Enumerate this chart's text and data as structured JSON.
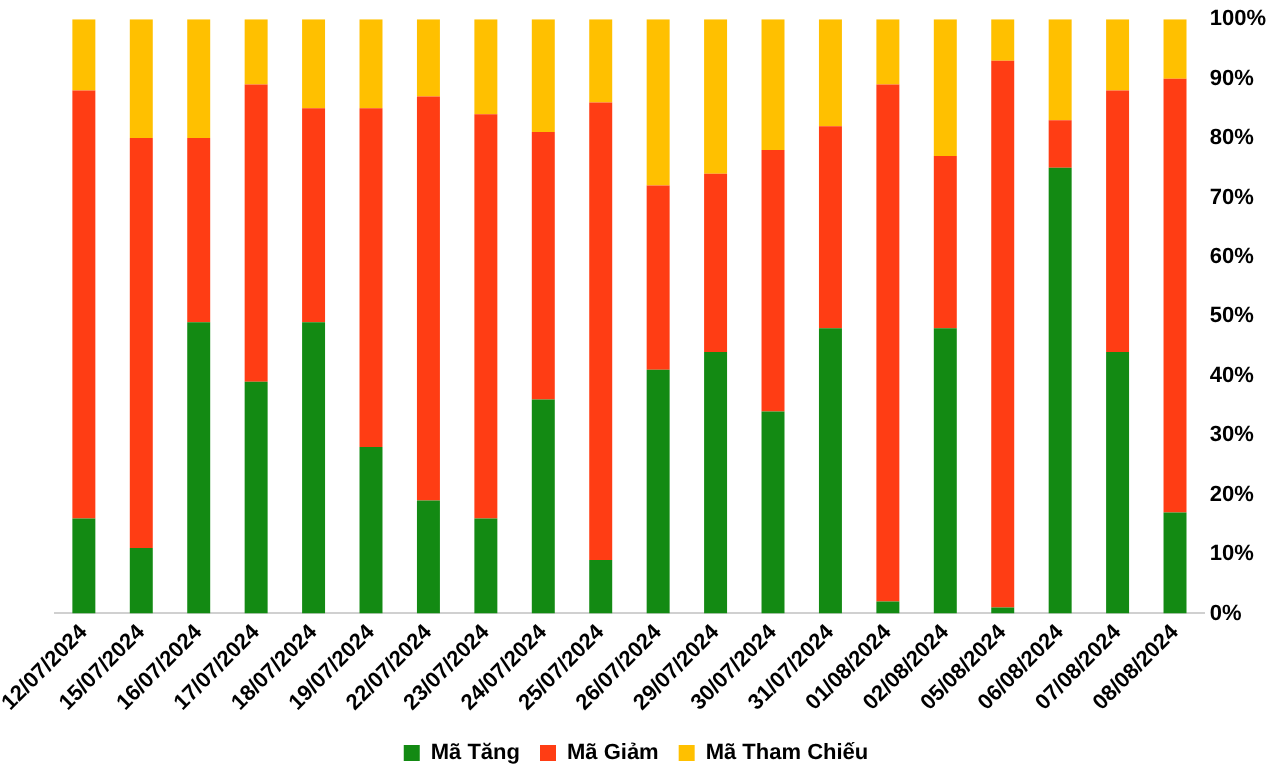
{
  "chart_data": {
    "type": "bar",
    "stacked": true,
    "categories": [
      "12/07/2024",
      "15/07/2024",
      "16/07/2024",
      "17/07/2024",
      "18/07/2024",
      "19/07/2024",
      "22/07/2024",
      "23/07/2024",
      "24/07/2024",
      "25/07/2024",
      "26/07/2024",
      "29/07/2024",
      "30/07/2024",
      "31/07/2024",
      "01/08/2024",
      "02/08/2024",
      "05/08/2024",
      "06/08/2024",
      "07/08/2024",
      "08/08/2024"
    ],
    "series": [
      {
        "name": "Mã Tăng",
        "color": "#138a13",
        "values": [
          16,
          11,
          49,
          39,
          49,
          28,
          19,
          16,
          36,
          9,
          41,
          44,
          34,
          48,
          2,
          48,
          1,
          75,
          44,
          17
        ]
      },
      {
        "name": "Mã Giảm",
        "color": "#ff3d14",
        "values": [
          72,
          69,
          31,
          50,
          36,
          57,
          68,
          68,
          45,
          77,
          31,
          30,
          44,
          34,
          87,
          29,
          92,
          8,
          44,
          73
        ]
      },
      {
        "name": "Mã Tham Chiếu",
        "color": "#ffc000",
        "values": [
          12,
          20,
          20,
          11,
          15,
          15,
          13,
          16,
          19,
          14,
          28,
          26,
          22,
          18,
          11,
          23,
          7,
          17,
          12,
          10
        ]
      }
    ],
    "ylim": [
      0,
      100
    ],
    "yticks": [
      {
        "value": 0,
        "label": "0%"
      },
      {
        "value": 10,
        "label": "10%"
      },
      {
        "value": 20,
        "label": "20%"
      },
      {
        "value": 30,
        "label": "30%"
      },
      {
        "value": 40,
        "label": "40%"
      },
      {
        "value": 50,
        "label": "50%"
      },
      {
        "value": 60,
        "label": "60%"
      },
      {
        "value": 70,
        "label": "70%"
      },
      {
        "value": 80,
        "label": "80%"
      },
      {
        "value": 90,
        "label": "90%"
      },
      {
        "value": 100,
        "label": "100%"
      }
    ],
    "grid": false,
    "legend": "bottom"
  }
}
